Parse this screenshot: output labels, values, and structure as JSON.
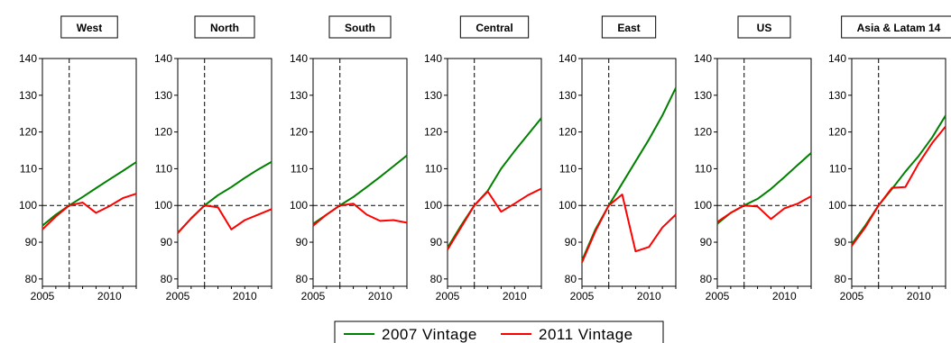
{
  "chart_data": {
    "type": "line",
    "ylim": [
      78,
      140
    ],
    "xlim": [
      2005,
      2012
    ],
    "yticks": [
      80,
      90,
      100,
      110,
      120,
      130,
      140
    ],
    "xticks": [
      2005,
      2010
    ],
    "reference": {
      "x": 2007,
      "y": 100
    },
    "grid": false,
    "legend_position": "bottom-center",
    "legend": [
      {
        "name": "2007 Vintage",
        "color": "#008000"
      },
      {
        "name": "2011 Vintage",
        "color": "#ff0000"
      }
    ],
    "x": [
      2005,
      2006,
      2007,
      2008,
      2009,
      2010,
      2011,
      2012
    ],
    "panels": [
      {
        "title": "West",
        "series": [
          {
            "name": "2007 Vintage",
            "values": [
              94.5,
              97.5,
              100,
              102.3,
              104.7,
              107.1,
              109.4,
              111.8
            ]
          },
          {
            "name": "2011 Vintage",
            "values": [
              93.5,
              97.0,
              100,
              100.8,
              98.0,
              99.8,
              102.0,
              103.2
            ]
          }
        ]
      },
      {
        "title": "North",
        "series": [
          {
            "name": "2007 Vintage",
            "values": [
              92.5,
              96.5,
              100,
              102.8,
              105.0,
              107.5,
              109.8,
              111.9
            ]
          },
          {
            "name": "2011 Vintage",
            "values": [
              92.5,
              96.5,
              100,
              99.5,
              93.5,
              96.0,
              97.5,
              99.0
            ]
          }
        ]
      },
      {
        "title": "South",
        "series": [
          {
            "name": "2007 Vintage",
            "values": [
              95.0,
              97.5,
              100,
              102.3,
              105.0,
              107.8,
              110.7,
              113.6
            ]
          },
          {
            "name": "2011 Vintage",
            "values": [
              94.5,
              97.5,
              100,
              100.5,
              97.5,
              95.8,
              96.0,
              95.3
            ]
          }
        ]
      },
      {
        "title": "Central",
        "series": [
          {
            "name": "2007 Vintage",
            "values": [
              88.5,
              94.5,
              100,
              104.0,
              110.0,
              114.8,
              119.3,
              123.8
            ]
          },
          {
            "name": "2011 Vintage",
            "values": [
              88.0,
              94.0,
              100,
              103.8,
              98.3,
              100.5,
              102.8,
              104.6
            ]
          }
        ]
      },
      {
        "title": "East",
        "series": [
          {
            "name": "2007 Vintage",
            "values": [
              85.0,
              93.5,
              100,
              106.0,
              112.0,
              118.0,
              124.5,
              132.0
            ]
          },
          {
            "name": "2011 Vintage",
            "values": [
              84.5,
              93.0,
              100,
              103.0,
              87.5,
              88.7,
              94.0,
              97.5
            ]
          }
        ]
      },
      {
        "title": "US",
        "series": [
          {
            "name": "2007 Vintage",
            "values": [
              95.0,
              98.0,
              100,
              101.8,
              104.5,
              107.7,
              111.0,
              114.3
            ]
          },
          {
            "name": "2011 Vintage",
            "values": [
              95.5,
              98.0,
              100,
              99.7,
              96.3,
              99.2,
              100.5,
              102.5
            ]
          }
        ]
      },
      {
        "title": "Asia & Latam 14",
        "series": [
          {
            "name": "2007 Vintage",
            "values": [
              89.5,
              94.5,
              100,
              104.5,
              109.2,
              113.5,
              118.5,
              124.5
            ]
          },
          {
            "name": "2011 Vintage",
            "values": [
              89.0,
              94.0,
              100,
              104.8,
              105.0,
              111.5,
              117.0,
              121.5
            ]
          }
        ]
      }
    ]
  }
}
